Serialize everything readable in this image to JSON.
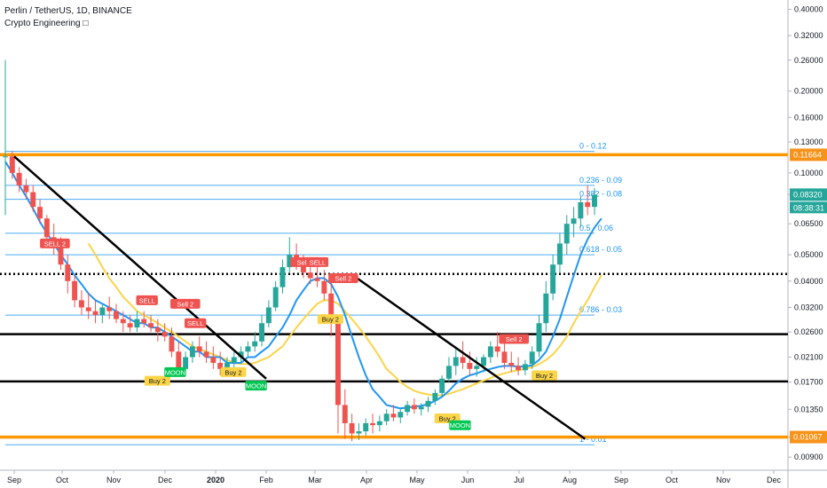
{
  "header": {
    "symbol_line": "Perlin / TetherUS, 1D, BINANCE",
    "indicator_line": "Crypto Engineering □"
  },
  "chart_data": {
    "type": "candlestick",
    "y_scale": "log",
    "ylim": [
      0.0083,
      0.42
    ],
    "y_ticks": [
      "0.40000",
      "0.32000",
      "0.26000",
      "0.20000",
      "0.16000",
      "0.13000",
      "0.10000",
      "0.08320",
      "0.06500",
      "0.05000",
      "0.04000",
      "0.03200",
      "0.02600",
      "0.02100",
      "0.01700",
      "0.01350",
      "0.01067",
      "0.00900"
    ],
    "x_ticks": [
      "Sep",
      "Oct",
      "Nov",
      "Dec",
      "2020",
      "Feb",
      "Mar",
      "Apr",
      "May",
      "Jun",
      "Jul",
      "Aug",
      "Sep",
      "Oct",
      "Nov",
      "Dec"
    ],
    "price_labels": [
      {
        "text": "0.11664",
        "color": "#f7931a"
      },
      {
        "text": "0.08320",
        "color": "#26a69a",
        "countdown": "08:38:31"
      },
      {
        "text": "0.01067",
        "color": "#f7931a"
      }
    ],
    "fib_levels": [
      {
        "label": "0 - 0.12",
        "value": 0.12
      },
      {
        "label": "0.236 - 0.09",
        "value": 0.09
      },
      {
        "label": "0.382 - 0.08",
        "value": 0.08
      },
      {
        "label": "0.5 - 0.06",
        "value": 0.06
      },
      {
        "label": "0.618 - 0.05",
        "value": 0.05
      },
      {
        "label": "0.786 - 0.03",
        "value": 0.03
      },
      {
        "label": "1 - 0.01",
        "value": 0.01
      }
    ],
    "horizontal_lines": [
      {
        "value": 0.11664,
        "color": "#ff9800",
        "style": "solid-thick"
      },
      {
        "value": 0.0425,
        "color": "#000000",
        "style": "dotted"
      },
      {
        "value": 0.0255,
        "color": "#000000",
        "style": "solid"
      },
      {
        "value": 0.0171,
        "color": "#000000",
        "style": "solid"
      },
      {
        "value": 0.01067,
        "color": "#ff9800",
        "style": "solid-thick"
      }
    ],
    "trendlines": [
      {
        "from": [
          0.0,
          0.115
        ],
        "to": [
          5.0,
          0.0175
        ]
      },
      {
        "from": [
          6.7,
          0.0425
        ],
        "to": [
          11.3,
          0.0105
        ]
      }
    ],
    "signals": [
      {
        "text": "SELL 2",
        "type": "sell",
        "x": 0.85,
        "y": 0.055
      },
      {
        "text": "SELL",
        "type": "sell",
        "x": 2.65,
        "y": 0.034
      },
      {
        "text": "Sell 2",
        "type": "sell",
        "x": 3.4,
        "y": 0.033
      },
      {
        "text": "SELL",
        "type": "sell",
        "x": 3.6,
        "y": 0.028
      },
      {
        "text": "Buy 2",
        "type": "buy",
        "x": 2.85,
        "y": 0.0172
      },
      {
        "text": "MOON",
        "type": "moon",
        "x": 3.2,
        "y": 0.0185
      },
      {
        "text": "Buy 2",
        "type": "buy",
        "x": 4.35,
        "y": 0.0185
      },
      {
        "text": "MOON",
        "type": "moon",
        "x": 4.8,
        "y": 0.0165
      },
      {
        "text": "Sell 2",
        "type": "sell",
        "x": 5.8,
        "y": 0.047
      },
      {
        "text": "SELL",
        "type": "sell",
        "x": 6.05,
        "y": 0.047
      },
      {
        "text": "Sell 2",
        "type": "sell",
        "x": 6.55,
        "y": 0.041
      },
      {
        "text": "Buy 2",
        "type": "buy",
        "x": 6.3,
        "y": 0.029
      },
      {
        "text": "Buy 2",
        "type": "buy",
        "x": 8.6,
        "y": 0.0125
      },
      {
        "text": "MOON",
        "type": "moon",
        "x": 8.85,
        "y": 0.0118
      },
      {
        "text": "Sell 2",
        "type": "sell",
        "x": 9.9,
        "y": 0.0245
      },
      {
        "text": "Buy 2",
        "type": "buy",
        "x": 10.5,
        "y": 0.018
      }
    ],
    "ohlc": [
      [
        0.115,
        0.26,
        0.07,
        0.115
      ],
      [
        0.115,
        0.12,
        0.095,
        0.1
      ],
      [
        0.1,
        0.105,
        0.085,
        0.09
      ],
      [
        0.09,
        0.095,
        0.08,
        0.085
      ],
      [
        0.085,
        0.09,
        0.072,
        0.075
      ],
      [
        0.075,
        0.08,
        0.065,
        0.068
      ],
      [
        0.068,
        0.07,
        0.055,
        0.058
      ],
      [
        0.058,
        0.065,
        0.05,
        0.055
      ],
      [
        0.055,
        0.058,
        0.044,
        0.046
      ],
      [
        0.046,
        0.05,
        0.036,
        0.04
      ],
      [
        0.04,
        0.042,
        0.032,
        0.034
      ],
      [
        0.034,
        0.037,
        0.03,
        0.032
      ],
      [
        0.032,
        0.036,
        0.029,
        0.031
      ],
      [
        0.031,
        0.034,
        0.028,
        0.03
      ],
      [
        0.03,
        0.033,
        0.028,
        0.032
      ],
      [
        0.032,
        0.035,
        0.029,
        0.031
      ],
      [
        0.031,
        0.033,
        0.028,
        0.029
      ],
      [
        0.029,
        0.031,
        0.026,
        0.028
      ],
      [
        0.028,
        0.03,
        0.026,
        0.027
      ],
      [
        0.027,
        0.031,
        0.026,
        0.029
      ],
      [
        0.029,
        0.031,
        0.027,
        0.028
      ],
      [
        0.028,
        0.03,
        0.026,
        0.027
      ],
      [
        0.027,
        0.029,
        0.024,
        0.026
      ],
      [
        0.026,
        0.028,
        0.024,
        0.025
      ],
      [
        0.025,
        0.027,
        0.021,
        0.022
      ],
      [
        0.022,
        0.024,
        0.018,
        0.019
      ],
      [
        0.019,
        0.022,
        0.018,
        0.021
      ],
      [
        0.021,
        0.024,
        0.02,
        0.023
      ],
      [
        0.023,
        0.025,
        0.021,
        0.022
      ],
      [
        0.022,
        0.024,
        0.02,
        0.021
      ],
      [
        0.021,
        0.023,
        0.019,
        0.02
      ],
      [
        0.02,
        0.022,
        0.018,
        0.019
      ],
      [
        0.019,
        0.021,
        0.018,
        0.02
      ],
      [
        0.02,
        0.022,
        0.019,
        0.021
      ],
      [
        0.021,
        0.023,
        0.02,
        0.022
      ],
      [
        0.022,
        0.024,
        0.021,
        0.023
      ],
      [
        0.023,
        0.026,
        0.022,
        0.024
      ],
      [
        0.024,
        0.03,
        0.023,
        0.028
      ],
      [
        0.028,
        0.034,
        0.027,
        0.032
      ],
      [
        0.032,
        0.04,
        0.031,
        0.038
      ],
      [
        0.038,
        0.048,
        0.036,
        0.045
      ],
      [
        0.045,
        0.058,
        0.043,
        0.05
      ],
      [
        0.05,
        0.055,
        0.044,
        0.046
      ],
      [
        0.046,
        0.05,
        0.041,
        0.043
      ],
      [
        0.043,
        0.047,
        0.039,
        0.041
      ],
      [
        0.041,
        0.045,
        0.038,
        0.04
      ],
      [
        0.04,
        0.044,
        0.034,
        0.036
      ],
      [
        0.036,
        0.04,
        0.025,
        0.028
      ],
      [
        0.028,
        0.03,
        0.011,
        0.014
      ],
      [
        0.014,
        0.016,
        0.0105,
        0.012
      ],
      [
        0.012,
        0.013,
        0.0103,
        0.011
      ],
      [
        0.011,
        0.012,
        0.0104,
        0.0112
      ],
      [
        0.0112,
        0.0125,
        0.0108,
        0.012
      ],
      [
        0.012,
        0.013,
        0.011,
        0.0118
      ],
      [
        0.0118,
        0.0128,
        0.0112,
        0.0122
      ],
      [
        0.0122,
        0.0135,
        0.0118,
        0.013
      ],
      [
        0.013,
        0.014,
        0.0122,
        0.0126
      ],
      [
        0.0126,
        0.0136,
        0.012,
        0.0132
      ],
      [
        0.0132,
        0.0145,
        0.0128,
        0.014
      ],
      [
        0.014,
        0.0148,
        0.013,
        0.0135
      ],
      [
        0.0135,
        0.0142,
        0.0128,
        0.0138
      ],
      [
        0.0138,
        0.015,
        0.0132,
        0.0145
      ],
      [
        0.0145,
        0.016,
        0.014,
        0.0155
      ],
      [
        0.0155,
        0.018,
        0.015,
        0.0175
      ],
      [
        0.0175,
        0.021,
        0.017,
        0.0195
      ],
      [
        0.0195,
        0.023,
        0.018,
        0.021
      ],
      [
        0.021,
        0.024,
        0.019,
        0.02
      ],
      [
        0.02,
        0.022,
        0.018,
        0.019
      ],
      [
        0.019,
        0.021,
        0.0178,
        0.0195
      ],
      [
        0.0195,
        0.0215,
        0.0185,
        0.021
      ],
      [
        0.021,
        0.024,
        0.02,
        0.023
      ],
      [
        0.023,
        0.026,
        0.021,
        0.022
      ],
      [
        0.022,
        0.024,
        0.019,
        0.02
      ],
      [
        0.02,
        0.022,
        0.0185,
        0.0195
      ],
      [
        0.0195,
        0.021,
        0.018,
        0.0188
      ],
      [
        0.0188,
        0.0205,
        0.018,
        0.0198
      ],
      [
        0.0198,
        0.023,
        0.019,
        0.022
      ],
      [
        0.022,
        0.03,
        0.021,
        0.028
      ],
      [
        0.028,
        0.04,
        0.026,
        0.036
      ],
      [
        0.036,
        0.05,
        0.034,
        0.046
      ],
      [
        0.046,
        0.06,
        0.043,
        0.055
      ],
      [
        0.055,
        0.07,
        0.05,
        0.065
      ],
      [
        0.065,
        0.075,
        0.058,
        0.068
      ],
      [
        0.068,
        0.082,
        0.063,
        0.078
      ],
      [
        0.078,
        0.09,
        0.07,
        0.075
      ],
      [
        0.075,
        0.088,
        0.07,
        0.0832
      ]
    ],
    "sma_blue": [
      0.11,
      0.1,
      0.09,
      0.082,
      0.074,
      0.066,
      0.06,
      0.055,
      0.05,
      0.046,
      0.042,
      0.039,
      0.036,
      0.034,
      0.033,
      0.032,
      0.031,
      0.03,
      0.029,
      0.028,
      0.028,
      0.027,
      0.027,
      0.026,
      0.025,
      0.024,
      0.023,
      0.022,
      0.022,
      0.021,
      0.021,
      0.021,
      0.02,
      0.02,
      0.02,
      0.021,
      0.021,
      0.022,
      0.023,
      0.025,
      0.027,
      0.03,
      0.034,
      0.037,
      0.04,
      0.041,
      0.041,
      0.039,
      0.035,
      0.03,
      0.025,
      0.021,
      0.018,
      0.016,
      0.015,
      0.014,
      0.0138,
      0.0136,
      0.0137,
      0.0138,
      0.0139,
      0.0141,
      0.0145,
      0.015,
      0.0158,
      0.0168,
      0.0175,
      0.018,
      0.0183,
      0.0187,
      0.019,
      0.0193,
      0.0195,
      0.0195,
      0.0194,
      0.0194,
      0.0196,
      0.0205,
      0.022,
      0.025,
      0.029,
      0.035,
      0.042,
      0.05,
      0.057,
      0.063,
      0.068
    ],
    "sma_yellow": [
      null,
      null,
      null,
      null,
      null,
      null,
      null,
      null,
      null,
      null,
      null,
      null,
      0.055,
      0.05,
      0.045,
      0.041,
      0.038,
      0.035,
      0.033,
      0.031,
      0.03,
      0.029,
      0.028,
      0.027,
      0.026,
      0.025,
      0.024,
      0.023,
      0.0225,
      0.022,
      0.0215,
      0.021,
      0.0205,
      0.02,
      0.0198,
      0.0198,
      0.02,
      0.0205,
      0.021,
      0.022,
      0.023,
      0.025,
      0.027,
      0.029,
      0.031,
      0.033,
      0.034,
      0.034,
      0.033,
      0.031,
      0.029,
      0.027,
      0.025,
      0.023,
      0.021,
      0.019,
      0.018,
      0.017,
      0.0163,
      0.0158,
      0.0155,
      0.0153,
      0.0152,
      0.0152,
      0.0154,
      0.0157,
      0.016,
      0.0164,
      0.0168,
      0.0172,
      0.0176,
      0.018,
      0.0183,
      0.0186,
      0.0188,
      0.019,
      0.0193,
      0.0198,
      0.0205,
      0.0215,
      0.023,
      0.025,
      0.028,
      0.031,
      0.034,
      0.038,
      0.042
    ]
  },
  "colors": {
    "up": "#26a69a",
    "down": "#ef5350",
    "sma_blue": "#2196f3",
    "sma_yellow": "#fbd448",
    "fib": "#2196f3",
    "orange": "#ff9800",
    "sell_bg": "#ef5350",
    "buy_bg": "#fbd448",
    "moon_bg": "#00c853"
  }
}
